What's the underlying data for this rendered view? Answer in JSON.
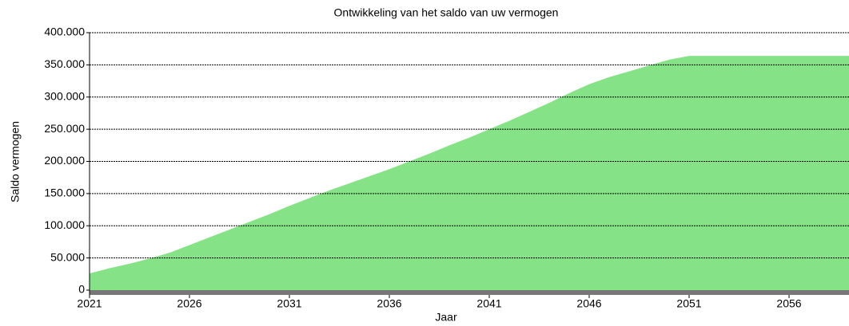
{
  "chart_data": {
    "type": "area",
    "title": "Ontwikkeling van het saldo van uw vermogen",
    "x_label": "Jaar",
    "y_label": "Saldo vermogen",
    "x": [
      2021,
      2022,
      2023,
      2024,
      2025,
      2026,
      2027,
      2028,
      2029,
      2030,
      2031,
      2032,
      2033,
      2034,
      2035,
      2036,
      2037,
      2038,
      2039,
      2040,
      2041,
      2042,
      2043,
      2044,
      2045,
      2046,
      2047,
      2048,
      2049,
      2050,
      2051,
      2052,
      2053,
      2054,
      2055,
      2056,
      2057,
      2058,
      2059
    ],
    "values": [
      26000,
      34000,
      41000,
      49000,
      58000,
      70000,
      82000,
      94000,
      106000,
      118000,
      131000,
      143000,
      155000,
      166000,
      177000,
      188000,
      200000,
      212000,
      225000,
      237000,
      250000,
      263000,
      277000,
      291000,
      306000,
      320000,
      331000,
      340000,
      349000,
      358000,
      364000,
      364000,
      364000,
      364000,
      364000,
      364000,
      364000,
      364000,
      364000
    ],
    "color": "#86e286",
    "xlim": [
      2021,
      2059
    ],
    "xticks": [
      2021,
      2026,
      2031,
      2036,
      2041,
      2046,
      2051,
      2056
    ],
    "ylim": [
      0,
      400000
    ],
    "yticks": [
      0,
      {
        "value": 50000,
        "label": "50.000"
      },
      {
        "value": 100000,
        "label": "100.000"
      },
      {
        "value": 150000,
        "label": "150.000"
      },
      {
        "value": 200000,
        "label": "200.000"
      },
      {
        "value": 250000,
        "label": "250.000"
      },
      {
        "value": 300000,
        "label": "300.000"
      },
      {
        "value": 350000,
        "label": "350.000"
      },
      {
        "value": 400000,
        "label": "400.000"
      }
    ],
    "grid": true
  }
}
